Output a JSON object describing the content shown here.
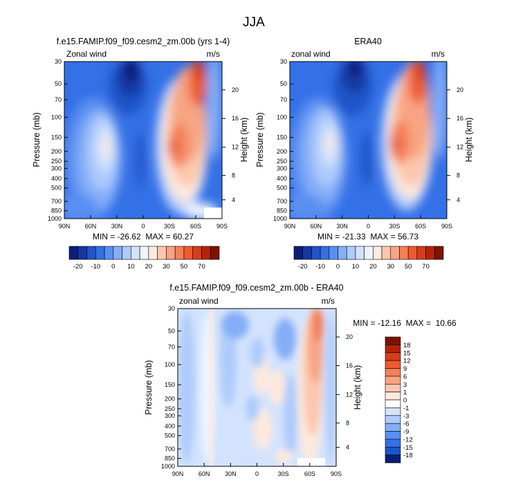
{
  "main_title": "JJA",
  "colors": {
    "blues": [
      "#0a1e78",
      "#1437a0",
      "#1f55c8",
      "#3470e6",
      "#5a8ef2",
      "#84aef7",
      "#aecbfb",
      "#d3e3fd",
      "#eef4fe"
    ],
    "reds": [
      "#fde9de",
      "#fbc7ae",
      "#f8a482",
      "#f47f58",
      "#ee5a32",
      "#d93c16",
      "#b3230b",
      "#7d1203"
    ]
  },
  "chart_data": [
    {
      "type": "heatmap",
      "title": "f.e15.FAMIP.f09_f09.cesm2_zm.00b (yrs 1-4)",
      "left_label": "Zonal wind",
      "right_label": "m/s",
      "xlabel": "",
      "ylabel": "Pressure (mb)",
      "ylabel_right": "Height (km)",
      "x_ticks": [
        "90N",
        "60N",
        "30N",
        "0",
        "30S",
        "60S",
        "90S"
      ],
      "y_ticks": [
        "30",
        "50",
        "70",
        "100",
        "150",
        "200",
        "250",
        "300",
        "400",
        "500",
        "700",
        "850",
        "1000"
      ],
      "height_ticks": [
        "20",
        "16",
        "12",
        "8",
        "4"
      ],
      "stats": "MIN = -26.62  MAX = 60.27",
      "colorbar_labels": [
        "-20",
        "-10",
        "0",
        "10",
        "20",
        "30",
        "50",
        "70"
      ]
    },
    {
      "type": "heatmap",
      "title": "ERA40",
      "left_label": "zonal wind",
      "right_label": "m/s",
      "xlabel": "",
      "ylabel": "Pressure (mb)",
      "ylabel_right": "Height (km)",
      "x_ticks": [
        "90N",
        "60N",
        "30N",
        "0",
        "30S",
        "60S",
        "90S"
      ],
      "y_ticks": [
        "30",
        "50",
        "70",
        "100",
        "150",
        "200",
        "250",
        "300",
        "400",
        "500",
        "700",
        "850",
        "1000"
      ],
      "height_ticks": [
        "20",
        "16",
        "12",
        "8",
        "4"
      ],
      "stats": "MIN = -21.33  MAX = 56.73",
      "colorbar_labels": [
        "-20",
        "-10",
        "0",
        "10",
        "20",
        "30",
        "50",
        "70"
      ]
    },
    {
      "type": "heatmap",
      "title": "f.e15.FAMIP.f09_f09.cesm2_zm.00b - ERA40",
      "left_label": "zonal wind",
      "right_label": "m/s",
      "xlabel": "",
      "ylabel": "Pressure (mb)",
      "ylabel_right": "Height (km)",
      "x_ticks": [
        "90N",
        "60N",
        "30N",
        "0",
        "30S",
        "60S",
        "90S"
      ],
      "y_ticks": [
        "30",
        "50",
        "70",
        "100",
        "150",
        "200",
        "250",
        "300",
        "400",
        "500",
        "700",
        "850",
        "1000"
      ],
      "height_ticks": [
        "20",
        "16",
        "12",
        "8",
        "4"
      ],
      "stats": "MIN = -12.16  MAX =  10.66",
      "colorbar_labels": [
        "18",
        "15",
        "12",
        "9",
        "6",
        "3",
        "1",
        "0",
        "-1",
        "-3",
        "-6",
        "-9",
        "-12",
        "-15",
        "-18"
      ]
    }
  ]
}
